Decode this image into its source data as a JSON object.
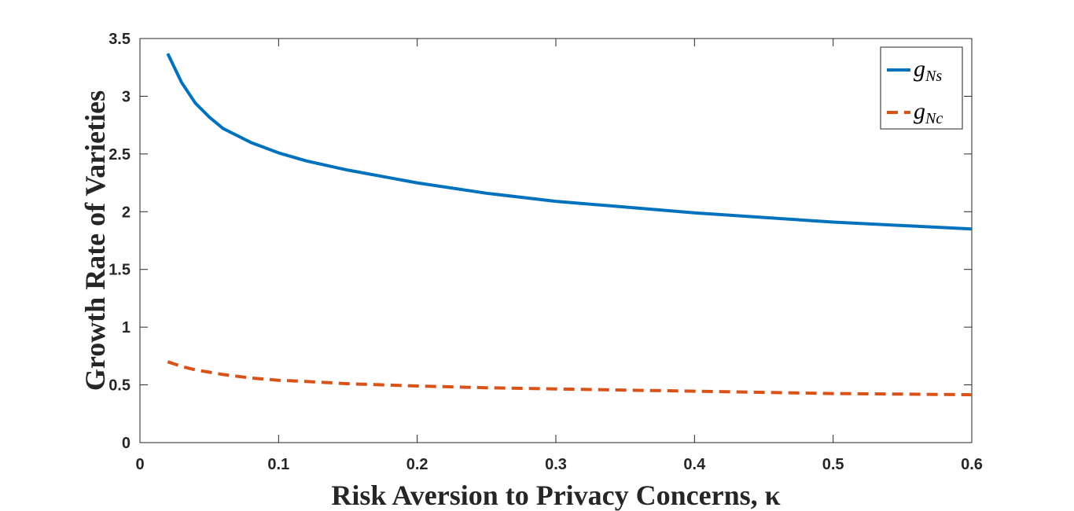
{
  "chart_data": {
    "type": "line",
    "xlabel": "Risk Aversion to Privacy Concerns, κ",
    "ylabel": "Growth Rate of Varieties",
    "xlim": [
      0,
      0.6
    ],
    "ylim": [
      0,
      3.5
    ],
    "xticks": [
      "0",
      "0.1",
      "0.2",
      "0.3",
      "0.4",
      "0.5",
      "0.6"
    ],
    "yticks": [
      "0",
      "0.5",
      "1",
      "1.5",
      "2",
      "2.5",
      "3",
      "3.5"
    ],
    "grid": false,
    "legend_position": "top-right",
    "series": [
      {
        "name": "g_Ns",
        "legend_main": "g",
        "legend_sub": "Ns",
        "color": "#0072BD",
        "style": "solid",
        "x": [
          0.02,
          0.03,
          0.04,
          0.05,
          0.06,
          0.08,
          0.1,
          0.12,
          0.15,
          0.2,
          0.25,
          0.3,
          0.35,
          0.4,
          0.45,
          0.5,
          0.55,
          0.6
        ],
        "y": [
          3.37,
          3.12,
          2.94,
          2.82,
          2.72,
          2.6,
          2.51,
          2.44,
          2.36,
          2.25,
          2.16,
          2.09,
          2.04,
          1.99,
          1.95,
          1.91,
          1.88,
          1.85
        ]
      },
      {
        "name": "g_Nc",
        "legend_main": "g",
        "legend_sub": "Nc",
        "color": "#D95319",
        "style": "dashed",
        "x": [
          0.02,
          0.03,
          0.04,
          0.05,
          0.06,
          0.08,
          0.1,
          0.12,
          0.15,
          0.2,
          0.25,
          0.3,
          0.35,
          0.4,
          0.45,
          0.5,
          0.55,
          0.6
        ],
        "y": [
          0.7,
          0.66,
          0.63,
          0.61,
          0.59,
          0.56,
          0.54,
          0.53,
          0.51,
          0.49,
          0.475,
          0.465,
          0.455,
          0.445,
          0.435,
          0.425,
          0.42,
          0.415
        ]
      }
    ]
  }
}
